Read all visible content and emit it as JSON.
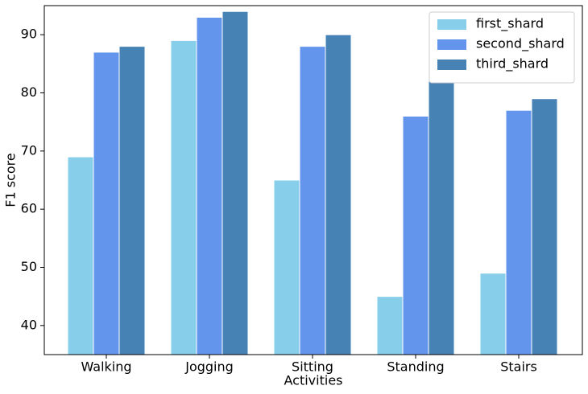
{
  "chart_data": {
    "type": "bar",
    "x_label": "Activities",
    "y_label": "F1 score",
    "categories": [
      "Walking",
      "Jogging",
      "Sitting",
      "Standing",
      "Stairs"
    ],
    "series": [
      {
        "name": "first_shard",
        "color": "#87ceeb",
        "values": [
          69,
          89,
          65,
          45,
          49
        ]
      },
      {
        "name": "second_shard",
        "color": "#6495ed",
        "values": [
          87,
          93,
          88,
          76,
          77
        ]
      },
      {
        "name": "third_shard",
        "color": "#4682b4",
        "values": [
          88,
          94,
          90,
          82,
          79
        ]
      }
    ],
    "ylim": [
      35,
      95
    ],
    "yticks": [
      40,
      50,
      60,
      70,
      80,
      90
    ],
    "grid": false,
    "legend": "upper-right"
  }
}
